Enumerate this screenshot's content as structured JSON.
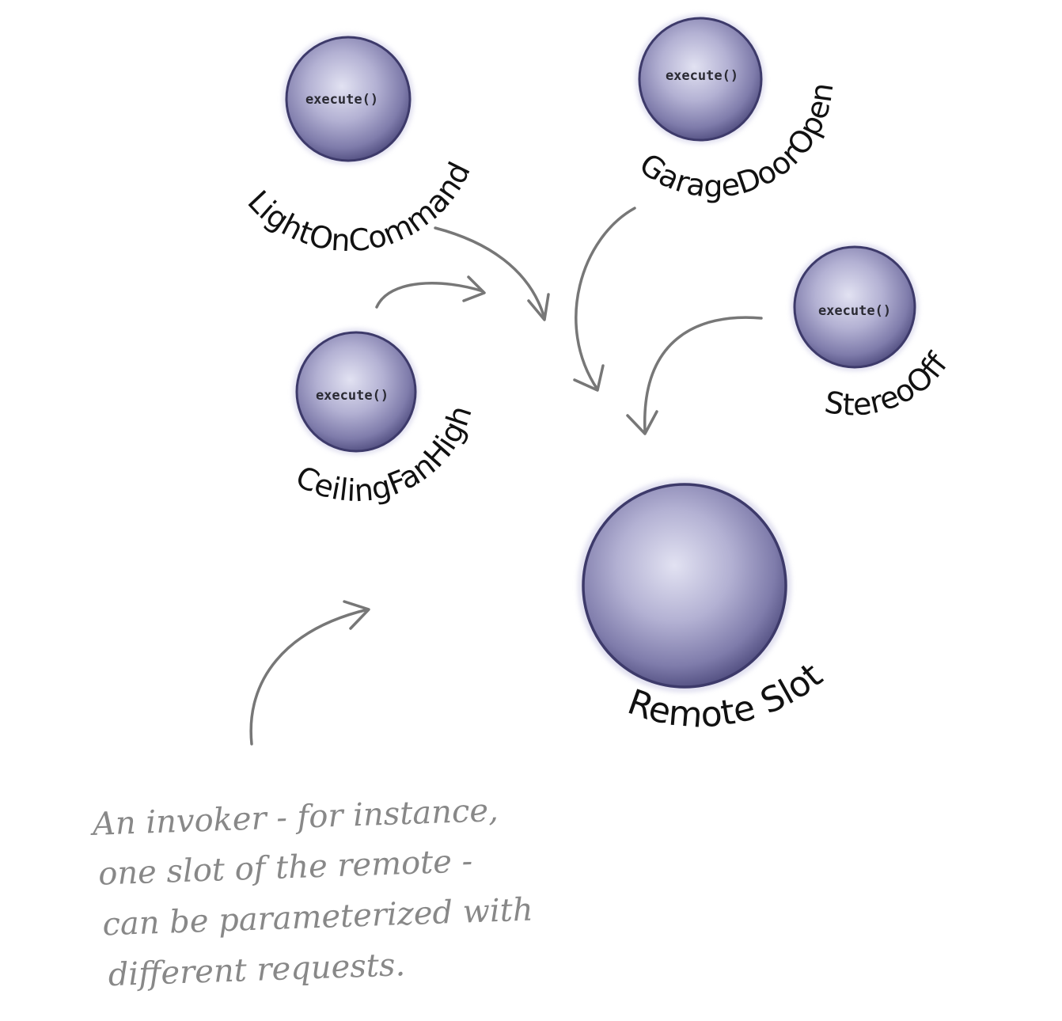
{
  "commands": [
    {
      "id": "light-on",
      "method": "execute()",
      "label": "LightOnCommand"
    },
    {
      "id": "garage-door-open",
      "method": "execute()",
      "label": "GarageDoorOpen"
    },
    {
      "id": "stereo-off",
      "method": "execute()",
      "label": "StereoOff"
    },
    {
      "id": "ceiling-fan-high",
      "method": "execute()",
      "label": "CeilingFanHigh"
    }
  ],
  "invoker": {
    "label": "Remote Slot"
  },
  "note": {
    "lines": [
      "An invoker - for instance,",
      "one slot of the remote -",
      "can be parameterized with",
      "different requests."
    ]
  },
  "colors": {
    "sphere_light": "#dcdcef",
    "sphere_mid": "#a7a5c9",
    "sphere_dark": "#4e4b7c",
    "sphere_edge": "#3b3868",
    "arrow": "#777777",
    "note_text": "#888888"
  }
}
